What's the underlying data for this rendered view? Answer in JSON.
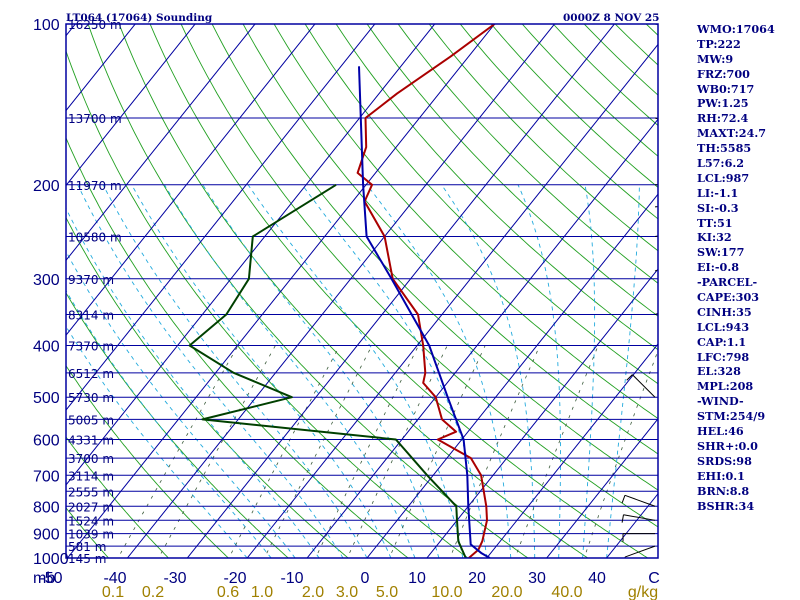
{
  "header": {
    "station": "LT064 (17064) Sounding",
    "valid_time": "0000Z  8 NOV 25"
  },
  "indices": [
    "WMO:17064",
    "TP:222",
    "MW:9",
    "FRZ:700",
    "WB0:717",
    "PW:1.25",
    "RH:72.4",
    "MAXT:24.7",
    "TH:5585",
    "L57:6.2",
    "LCL:987",
    "LI:-1.1",
    "SI:-0.3",
    "TT:51",
    "KI:32",
    "SW:177",
    "EI:-0.8",
    "-PARCEL-",
    "CAPE:303",
    "CINH:35",
    "LCL:943",
    "CAP:1.1",
    "LFC:798",
    "EL:328",
    "MPL:208",
    "-WIND-",
    "STM:254/9",
    "HEL:46",
    "SHR+:0.0",
    "SRDS:98",
    "EHI:0.1",
    "BRN:8.8",
    "BSHR:34"
  ],
  "chart_data": {
    "type": "line",
    "title": "LT064 (17064) Sounding",
    "subtitle": "0000Z  8 NOV 25",
    "xlabel": "",
    "ylabel": "mb",
    "x_ticks": [
      "-50",
      "-40",
      "-30",
      "-20",
      "-10",
      "0",
      "10",
      "20",
      "30",
      "40",
      "C"
    ],
    "mixing_ratio_ticks": [
      "0.1",
      "0.2",
      "0.6",
      "1.0",
      "2.0",
      "3.0",
      "5.0",
      "10.0",
      "20.0",
      "40.0",
      "g/kg"
    ],
    "pressure_ticks": [
      "100",
      "200",
      "300",
      "400",
      "500",
      "600",
      "700",
      "800",
      "900",
      "1000"
    ],
    "height_labels": [
      {
        "p": 100,
        "label": "16250 m"
      },
      {
        "p": 150,
        "label": "13700 m"
      },
      {
        "p": 200,
        "label": "11970 m"
      },
      {
        "p": 250,
        "label": "10580 m"
      },
      {
        "p": 300,
        "label": "9370 m"
      },
      {
        "p": 350,
        "label": "8314 m"
      },
      {
        "p": 400,
        "label": "7370 m"
      },
      {
        "p": 450,
        "label": "6512 m"
      },
      {
        "p": 500,
        "label": "5730 m"
      },
      {
        "p": 550,
        "label": "5005 m"
      },
      {
        "p": 600,
        "label": "4331 m"
      },
      {
        "p": 650,
        "label": "3700 m"
      },
      {
        "p": 700,
        "label": "3114 m"
      },
      {
        "p": 750,
        "label": "2555 m"
      },
      {
        "p": 800,
        "label": "2027 m"
      },
      {
        "p": 850,
        "label": "1524 m"
      },
      {
        "p": 900,
        "label": "1039 m"
      },
      {
        "p": 950,
        "label": "581 m"
      },
      {
        "p": 1000,
        "label": "145 m"
      }
    ],
    "series": [
      {
        "role": "temperature",
        "color": "#aa0000",
        "points": [
          [
            100,
            -50
          ],
          [
            115,
            -53
          ],
          [
            135,
            -57
          ],
          [
            150,
            -59
          ],
          [
            170,
            -55
          ],
          [
            190,
            -53
          ],
          [
            200,
            -49
          ],
          [
            215,
            -48
          ],
          [
            250,
            -40
          ],
          [
            300,
            -33
          ],
          [
            350,
            -24
          ],
          [
            400,
            -19
          ],
          [
            450,
            -15
          ],
          [
            470,
            -14
          ],
          [
            500,
            -10
          ],
          [
            550,
            -6
          ],
          [
            580,
            -2
          ],
          [
            600,
            -4
          ],
          [
            650,
            4
          ],
          [
            700,
            8
          ],
          [
            800,
            13
          ],
          [
            850,
            15
          ],
          [
            930,
            17
          ],
          [
            965,
            17.5
          ],
          [
            1000,
            17
          ]
        ]
      },
      {
        "role": "dewpoint",
        "color": "#004000",
        "points": [
          [
            200,
            -55
          ],
          [
            250,
            -62
          ],
          [
            300,
            -57
          ],
          [
            350,
            -56
          ],
          [
            400,
            -58
          ],
          [
            450,
            -47
          ],
          [
            500,
            -34
          ],
          [
            550,
            -46
          ],
          [
            600,
            -11
          ],
          [
            700,
            -1
          ],
          [
            800,
            8
          ],
          [
            850,
            10
          ],
          [
            930,
            13
          ],
          [
            1000,
            16.5
          ]
        ]
      },
      {
        "role": "parcel",
        "color": "#0000aa",
        "points": [
          [
            120,
            -67
          ],
          [
            200,
            -50.5
          ],
          [
            250,
            -43
          ],
          [
            300,
            -33.2
          ],
          [
            400,
            -18
          ],
          [
            500,
            -8
          ],
          [
            600,
            0.3
          ],
          [
            700,
            5.7
          ],
          [
            800,
            10
          ],
          [
            943,
            15.5
          ],
          [
            980,
            18.5
          ],
          [
            1000,
            20.5
          ]
        ]
      }
    ]
  }
}
